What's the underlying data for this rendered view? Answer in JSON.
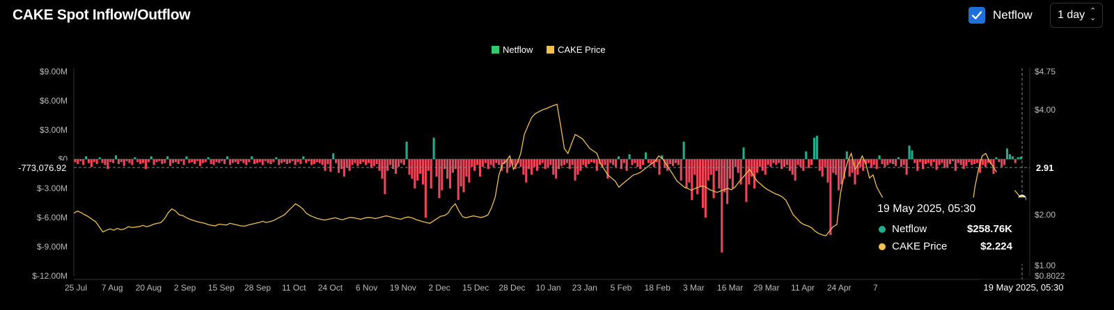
{
  "header": {
    "title": "CAKE Spot Inflow/Outflow"
  },
  "controls": {
    "netflow_checked": true,
    "netflow_label": "Netflow",
    "interval": "1 day"
  },
  "legend": [
    {
      "name": "Netflow",
      "color": "#2ecc71"
    },
    {
      "name": "CAKE Price",
      "color": "#f2c14e"
    }
  ],
  "tooltip": {
    "date": "19 May 2025, 05:30",
    "rows": [
      {
        "label": "Netflow",
        "value": "$258.76K",
        "color": "#1fae8e"
      },
      {
        "label": "CAKE Price",
        "value": "$2.224",
        "color": "#f2c14e"
      }
    ]
  },
  "crosshair": {
    "left_label": "-773,076.92",
    "right_label": "2.91",
    "x_label": "19 May 2025, 05:30"
  },
  "chart_data": {
    "type": "bar",
    "x_start": "2024-07-25",
    "x_end": "2025-05-19",
    "x_ticks": [
      "25 Jul",
      "7 Aug",
      "20 Aug",
      "2 Sep",
      "15 Sep",
      "28 Sep",
      "11 Oct",
      "24 Oct",
      "6 Nov",
      "19 Nov",
      "2 Dec",
      "15 Dec",
      "28 Dec",
      "10 Jan",
      "23 Jan",
      "5 Feb",
      "18 Feb",
      "3 Mar",
      "16 Mar",
      "29 Mar",
      "11 Apr",
      "24 Apr",
      "7"
    ],
    "y_left": {
      "ticks": [
        "$9.00M",
        "$6.00M",
        "$3.00M",
        "$0",
        "$-3.00M",
        "$-6.00M",
        "$-9.00M",
        "$-12.00M"
      ],
      "ylim": [
        -12,
        9
      ],
      "unit": "USD millions"
    },
    "y_right": {
      "ticks": [
        "$4.75",
        "$4.00",
        "$2.00",
        "$1.00",
        "$0.8022"
      ],
      "unit": "USD"
    },
    "series": [
      {
        "name": "Netflow",
        "type": "bar",
        "unit": "USD millions",
        "values": [
          -0.3,
          -0.5,
          -0.2,
          -0.6,
          0.3,
          -0.4,
          -0.8,
          -0.3,
          -0.5,
          0.2,
          -0.4,
          -0.6,
          -1.0,
          -0.3,
          -0.4,
          0.4,
          -0.5,
          -0.3,
          -0.7,
          -0.2,
          -0.4,
          -0.6,
          0.2,
          -0.3,
          -0.5,
          -0.4,
          -1.0,
          -0.3,
          0.3,
          -0.6,
          -0.3,
          -0.2,
          -0.5,
          -0.4,
          0.3,
          -0.7,
          -0.4,
          -0.3,
          -0.5,
          -0.2,
          -0.6,
          0.3,
          -0.4,
          -0.3,
          -0.5,
          -0.2,
          -0.7,
          -0.4,
          -0.3,
          0.2,
          -0.5,
          -0.6,
          -0.3,
          -0.4,
          -0.2,
          -0.5,
          0.3,
          -0.6,
          -0.4,
          -0.3,
          -0.5,
          -0.2,
          -0.4,
          -0.6,
          -0.3,
          0.3,
          -0.5,
          -0.4,
          -0.3,
          -0.6,
          -0.2,
          -0.4,
          -0.5,
          -0.3,
          0.2,
          -0.6,
          -0.4,
          -0.3,
          -0.5,
          -0.4,
          -0.2,
          -0.6,
          -0.3,
          -0.5,
          0.3,
          -0.4,
          -0.2,
          -0.6,
          -0.5,
          -0.3,
          -0.4,
          -0.6,
          -1.2,
          -0.5,
          -1.3,
          0.6,
          -0.4,
          -1.4,
          -1.0,
          -1.8,
          -0.9,
          -1.2,
          -0.6,
          -0.4,
          -0.7,
          -0.5,
          -0.3,
          -0.6,
          -0.4,
          -0.9,
          -0.7,
          -0.5,
          -1.2,
          -2.0,
          -3.6,
          -1.2,
          -0.6,
          -1.0,
          -1.5,
          -0.8,
          -0.4,
          -0.6,
          1.8,
          -1.6,
          -2.0,
          -3.0,
          -2.2,
          -1.5,
          -2.6,
          -6.0,
          -1.2,
          -3.0,
          2.2,
          -1.8,
          -4.0,
          -3.2,
          -1.0,
          -2.0,
          -3.0,
          -1.4,
          -1.0,
          -4.2,
          -2.8,
          -3.4,
          -1.8,
          -2.4,
          -0.8,
          -1.2,
          -0.6,
          -1.8,
          -0.8,
          -0.4,
          -1.0,
          -0.6,
          -0.8,
          -0.4,
          -0.6,
          -1.2,
          -0.5,
          -1.4,
          -0.8,
          -0.6,
          -1.0,
          -0.4,
          -0.8,
          -1.6,
          -2.4,
          -1.0,
          -1.6,
          -0.8,
          -1.2,
          -0.6,
          -0.4,
          -1.0,
          -0.8,
          -0.6,
          -1.6,
          -2.0,
          -1.0,
          -0.7,
          -0.6,
          -0.4,
          -1.0,
          -0.6,
          -2.2,
          -1.6,
          -1.2,
          -0.6,
          -0.8,
          -0.5,
          -0.3,
          -0.4,
          -1.2,
          -0.5,
          -0.8,
          -0.6,
          -2.0,
          -0.4,
          -0.6,
          -0.8,
          0.3,
          -1.0,
          -0.4,
          -1.2,
          0.5,
          -0.6,
          -0.4,
          -0.8,
          -1.0,
          -0.6,
          0.7,
          -0.4,
          -0.5,
          -0.8,
          -0.3,
          -1.6,
          0.4,
          -0.9,
          -1.2,
          -0.5,
          -0.7,
          -0.4,
          -0.6,
          -2.2,
          1.8,
          -3.0,
          -2.4,
          -4.2,
          -1.6,
          -3.6,
          -2.8,
          -5.0,
          -6.0,
          -2.2,
          -1.6,
          -4.0,
          -1.2,
          -3.0,
          -9.6,
          -3.4,
          -4.6,
          -2.0,
          -3.0,
          -0.8,
          -1.4,
          -2.6,
          1.2,
          -4.4,
          -2.6,
          -1.8,
          -3.0,
          -1.4,
          -0.8,
          -1.2,
          -1.6,
          -0.6,
          -0.8,
          -0.4,
          -0.6,
          -0.4,
          -1.0,
          -0.8,
          -0.6,
          -1.2,
          -1.6,
          -2.2,
          -0.6,
          -0.8,
          -1.2,
          0.8,
          -0.9,
          -0.6,
          2.2,
          2.4,
          -1.2,
          -1.8,
          -0.8,
          -2.4,
          -7.8,
          -1.4,
          -1.6,
          -3.2,
          -2.6,
          -2.0,
          0.8,
          -1.8,
          -1.4,
          -2.6,
          -1.6,
          -0.8,
          -1.2,
          -0.5,
          -0.4,
          -0.9,
          -0.6,
          -1.0,
          0.4,
          -0.5,
          -0.8,
          -0.6,
          -0.4,
          -0.5,
          -0.7,
          0.2,
          -0.8,
          -0.6,
          -1.6,
          1.4,
          0.9,
          -0.4,
          -1.2,
          -0.3,
          -1.0,
          -0.5,
          -0.4,
          -0.7,
          -0.3,
          -1.1,
          -0.6,
          -0.4,
          -0.9,
          -0.8,
          -0.5,
          -0.2,
          -1.2,
          -0.4,
          -0.6,
          -1.0,
          -0.7,
          -0.3,
          -0.6,
          -0.5,
          -0.4,
          -1.4,
          -0.6,
          -0.8,
          -0.4,
          -0.5,
          -1.5,
          0.2,
          -0.3,
          -0.8,
          -0.6,
          1.1,
          0.5,
          0.3,
          -0.4,
          0.2,
          0.26
        ]
      },
      {
        "name": "CAKE Price",
        "type": "line",
        "unit": "USD",
        "values": [
          2.02,
          2.05,
          2.03,
          2.0,
          1.95,
          1.88,
          1.82,
          1.7,
          1.58,
          1.62,
          1.65,
          1.62,
          1.66,
          1.63,
          1.65,
          1.7,
          1.68,
          1.69,
          1.7,
          1.73,
          1.7,
          1.72,
          1.76,
          1.78,
          1.8,
          1.9,
          2.03,
          2.08,
          2.05,
          2.0,
          1.98,
          1.92,
          1.88,
          1.85,
          1.82,
          1.8,
          1.78,
          1.75,
          1.73,
          1.72,
          1.76,
          1.75,
          1.74,
          1.78,
          1.76,
          1.74,
          1.72,
          1.71,
          1.74,
          1.76,
          1.78,
          1.8,
          1.83,
          1.8,
          1.82,
          1.85,
          1.9,
          1.95,
          2.0,
          2.05,
          2.1,
          2.15,
          2.12,
          2.08,
          2.02,
          1.98,
          1.94,
          1.9,
          1.88,
          1.86,
          1.88,
          1.9,
          1.92,
          1.89,
          1.87,
          1.9,
          1.93,
          1.92,
          1.9,
          1.88,
          1.91,
          1.93,
          1.92,
          1.9,
          1.92,
          1.95,
          1.97,
          1.95,
          1.92,
          1.9,
          1.88,
          1.92,
          1.94,
          1.92,
          1.88,
          1.85,
          1.82,
          1.8,
          1.78,
          1.84,
          1.9,
          1.96,
          1.98,
          2.02,
          2.1,
          2.15,
          2.05,
          1.95,
          1.92,
          1.95,
          1.97,
          1.95,
          1.93,
          1.95,
          2.0,
          2.1,
          2.25,
          2.6,
          2.8,
          2.85,
          2.95,
          2.7,
          2.8,
          3.0,
          3.4,
          3.6,
          3.8,
          3.9,
          3.95,
          4.0,
          4.02,
          4.05,
          4.08,
          4.1,
          3.6,
          3.1,
          3.0,
          3.2,
          3.4,
          3.35,
          3.3,
          3.2,
          3.1,
          3.05,
          3.0,
          2.8,
          2.7,
          2.6,
          2.55,
          2.5,
          2.4,
          2.45,
          2.5,
          2.55,
          2.6,
          2.62,
          2.65,
          2.7,
          2.75,
          2.8,
          2.85,
          2.95,
          2.9,
          2.8,
          2.7,
          2.6,
          2.5,
          2.45,
          2.4,
          2.38,
          2.35,
          2.38,
          2.4,
          2.42,
          2.4,
          2.36,
          2.34,
          2.32,
          2.34,
          2.36,
          2.38,
          2.36,
          2.4,
          2.48,
          2.55,
          2.62,
          2.7,
          2.6,
          2.5,
          2.45,
          2.4,
          2.36,
          2.33,
          2.3,
          2.28,
          2.25,
          2.2,
          2.1,
          2.0,
          1.9,
          1.8,
          1.75,
          1.72,
          1.68,
          1.6,
          1.55,
          1.52,
          1.5,
          1.6,
          1.7,
          1.75,
          2.3,
          2.6,
          2.85,
          3.0,
          2.7,
          2.8,
          2.95,
          2.8,
          2.55,
          2.6,
          2.4,
          2.3,
          2.2,
          2.15,
          2.1,
          2.05,
          2.03,
          2.0,
          1.98,
          1.9,
          1.85,
          1.82,
          1.8,
          1.75,
          1.7,
          1.66,
          1.62,
          1.6,
          1.62,
          1.68,
          1.62,
          1.65,
          1.7,
          1.75,
          1.8,
          1.9,
          2.0,
          2.4,
          2.7,
          2.95,
          3.0,
          2.85,
          2.75,
          2.65,
          2.6,
          2.55,
          2.5,
          2.4,
          2.35,
          2.28,
          2.224
        ]
      }
    ]
  }
}
